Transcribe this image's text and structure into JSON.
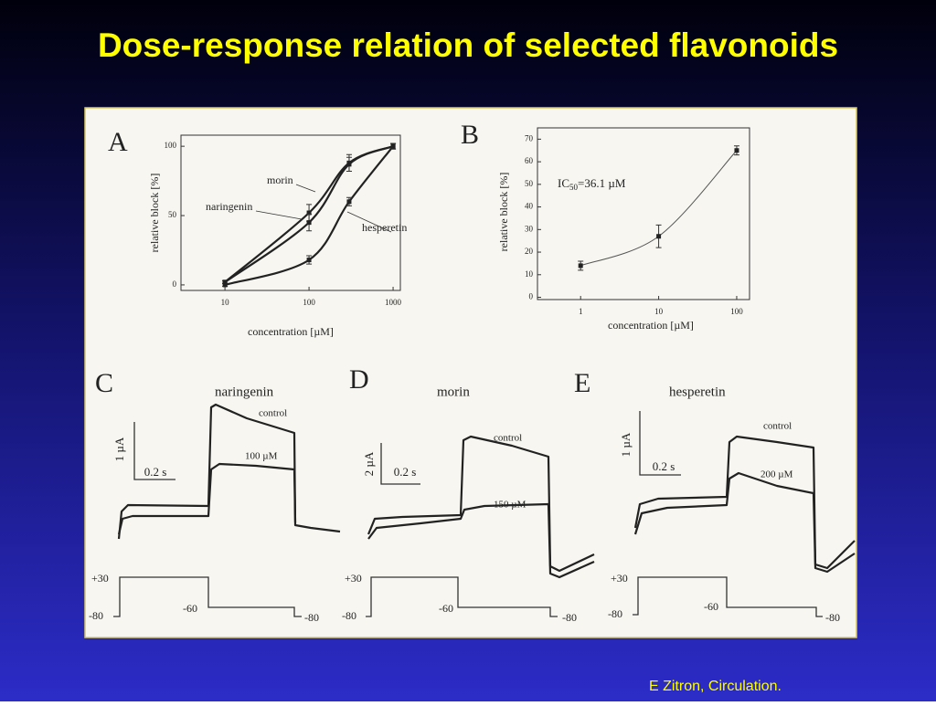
{
  "title": "Dose-response relation of selected flavonoids",
  "citation": "E Zitron, Circulation.",
  "chart_data": [
    {
      "type": "line",
      "panel": "A",
      "xlabel": "concentration [µM]",
      "ylabel": "relative block [%]",
      "log_x": true,
      "xlim": [
        3,
        1220
      ],
      "ylim": [
        -4,
        108
      ],
      "xticks": [
        10,
        100,
        1000
      ],
      "yticks": [
        0,
        50,
        100
      ],
      "series": [
        {
          "name": "morin",
          "color": "#222222",
          "x": [
            10,
            100,
            300,
            1000
          ],
          "values": [
            2,
            52,
            88,
            100
          ],
          "errors": [
            1,
            6,
            6,
            2
          ]
        },
        {
          "name": "naringenin",
          "color": "#222222",
          "x": [
            10,
            100,
            300,
            1000
          ],
          "values": [
            2,
            45,
            87,
            100
          ],
          "errors": [
            1,
            6,
            5,
            2
          ]
        },
        {
          "name": "hesperetin",
          "color": "#222222",
          "x": [
            10,
            100,
            300,
            1000
          ],
          "values": [
            0,
            18,
            60,
            100
          ],
          "errors": [
            1,
            3,
            3,
            2
          ]
        }
      ]
    },
    {
      "type": "line",
      "panel": "B",
      "xlabel": "concentration [µM]",
      "ylabel": "relative block [%]",
      "annotation": [
        "IC",
        "50",
        "=36.1 µM"
      ],
      "log_x": true,
      "xlim": [
        0.28,
        146
      ],
      "ylim": [
        -1,
        75
      ],
      "xticks": [
        1,
        10,
        100
      ],
      "yticks": [
        0,
        10,
        20,
        30,
        40,
        50,
        60,
        70
      ],
      "series": [
        {
          "color": "#555555",
          "x": [
            1,
            10,
            100
          ],
          "values": [
            14,
            27,
            65
          ],
          "errors": [
            2,
            5,
            2
          ]
        }
      ]
    }
  ],
  "trace_panels": [
    {
      "label": "C",
      "compound": "naringenin",
      "scale_y": "1 µA",
      "scale_x": "0.2 s",
      "traces": [
        "control",
        "100 µM"
      ],
      "protocol": [
        "+30",
        "-80",
        "-60",
        "-80"
      ]
    },
    {
      "label": "D",
      "compound": "morin",
      "scale_y": "2 µA",
      "scale_x": "0.2 s",
      "traces": [
        "control",
        "150 µM"
      ],
      "protocol": [
        "+30",
        "-80",
        "-60",
        "-80"
      ]
    },
    {
      "label": "E",
      "compound": "hesperetin",
      "scale_y": "1 µA",
      "scale_x": "0.2 s",
      "traces": [
        "control",
        "200 µM"
      ],
      "protocol": [
        "+30",
        "-80",
        "-60",
        "-80"
      ]
    }
  ]
}
